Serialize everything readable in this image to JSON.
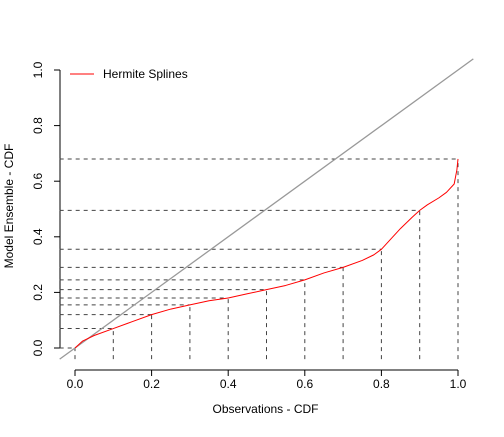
{
  "chart_data": {
    "type": "line",
    "xlabel": "Observations - CDF",
    "ylabel": "Model Ensemble - CDF",
    "xlim": [
      -0.04,
      1.04
    ],
    "ylim": [
      -0.04,
      1.04
    ],
    "x_ticks": [
      "0.0",
      "0.2",
      "0.4",
      "0.6",
      "0.8",
      "1.0"
    ],
    "y_ticks": [
      "0.0",
      "0.2",
      "0.4",
      "0.6",
      "0.8",
      "1.0"
    ],
    "legend_position": "top-left",
    "grid": false,
    "series": [
      {
        "name": "Hermite Splines",
        "color": "#ff0000",
        "x": [
          0,
          0.02,
          0.05,
          0.1,
          0.15,
          0.2,
          0.25,
          0.3,
          0.35,
          0.4,
          0.45,
          0.5,
          0.55,
          0.6,
          0.65,
          0.7,
          0.75,
          0.78,
          0.8,
          0.82,
          0.85,
          0.88,
          0.9,
          0.92,
          0.95,
          0.97,
          0.99,
          0.997,
          1.0
        ],
        "values": [
          0.0,
          0.025,
          0.045,
          0.07,
          0.095,
          0.12,
          0.14,
          0.155,
          0.17,
          0.18,
          0.195,
          0.21,
          0.225,
          0.245,
          0.27,
          0.29,
          0.315,
          0.335,
          0.355,
          0.385,
          0.43,
          0.47,
          0.495,
          0.515,
          0.54,
          0.56,
          0.59,
          0.64,
          0.68
        ]
      }
    ],
    "reference_line": {
      "color": "#999999",
      "from": [
        -0.04,
        -0.04
      ],
      "to": [
        1.04,
        1.04
      ]
    },
    "guides": {
      "color": "#444444",
      "points": [
        [
          0.0,
          0.0
        ],
        [
          0.1,
          0.07
        ],
        [
          0.2,
          0.12
        ],
        [
          0.3,
          0.155
        ],
        [
          0.4,
          0.18
        ],
        [
          0.5,
          0.21
        ],
        [
          0.6,
          0.245
        ],
        [
          0.7,
          0.29
        ],
        [
          0.8,
          0.355
        ],
        [
          0.9,
          0.495
        ],
        [
          1.0,
          0.68
        ]
      ]
    }
  }
}
